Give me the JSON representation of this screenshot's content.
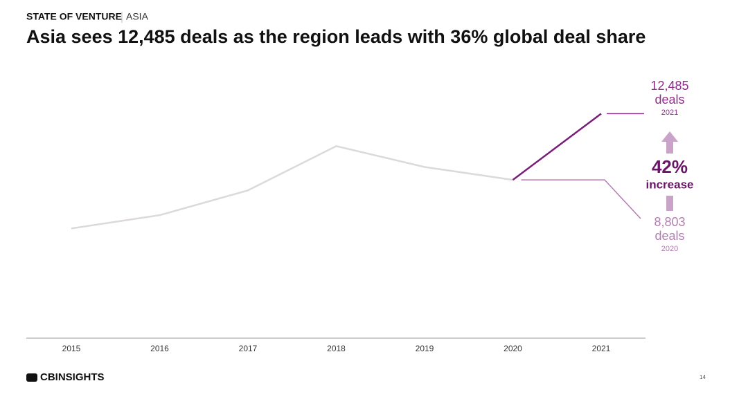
{
  "header": {
    "section": "STATE OF VENTURE",
    "region": "ASIA"
  },
  "chart_data": {
    "type": "line",
    "title": "Asia sees 12,485 deals as the region leads with 36% global deal share",
    "x": [
      2015,
      2016,
      2017,
      2018,
      2019,
      2020,
      2021
    ],
    "xlim": [
      2015,
      2021
    ],
    "xticks": [
      2015,
      2016,
      2017,
      2018,
      2019,
      2020,
      2021
    ],
    "ylim": [
      0,
      15000
    ],
    "series": [
      {
        "color": "#dcd8dc",
        "values": [
          6100,
          6840,
          8220,
          10680,
          9520,
          8803,
          null
        ]
      },
      {
        "color": "#7b1c78",
        "values": [
          null,
          null,
          null,
          null,
          null,
          8803,
          12485
        ]
      }
    ],
    "callouts": [
      {
        "value": 12485,
        "label": "12,485",
        "unit": "deals",
        "year": "2021",
        "color": "#8e2b8c"
      },
      {
        "value": 8803,
        "label": "8,803",
        "unit": "deals",
        "year": "2020",
        "color": "#b47cb3"
      }
    ],
    "change": {
      "value": 42,
      "label": "42%",
      "text": "increase",
      "color": "#6a1668",
      "arrow_color": "#c9a3c8"
    }
  },
  "footer": {
    "brand": "CBINSIGHTS",
    "page": "14"
  }
}
